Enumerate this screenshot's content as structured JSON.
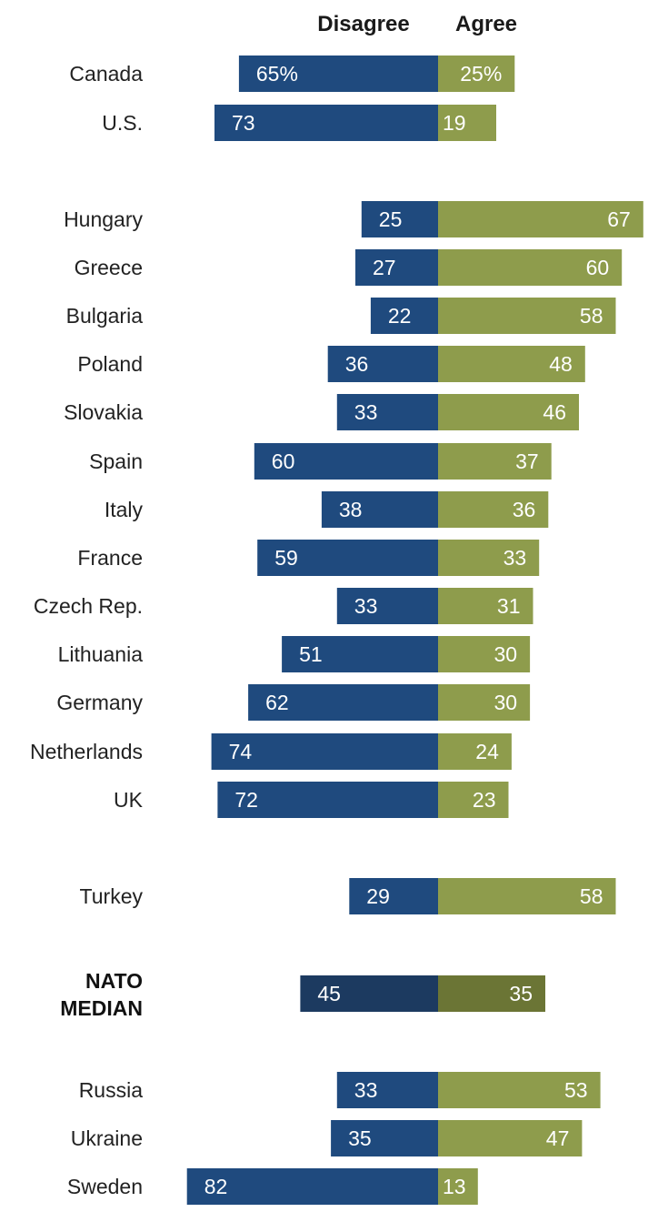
{
  "chart_data": {
    "type": "bar",
    "orientation": "horizontal-diverging",
    "headers": {
      "disagree": "Disagree",
      "agree": "Agree"
    },
    "series": [
      {
        "name": "Disagree",
        "color": "#1f4a7e",
        "emphasis_color": "#1c3a60"
      },
      {
        "name": "Agree",
        "color": "#8e9c4c",
        "emphasis_color": "#6b7535"
      }
    ],
    "rows": [
      {
        "label": "Canada",
        "disagree": 65,
        "agree": 25,
        "disagree_text": "65%",
        "agree_text": "25%"
      },
      {
        "label": "U.S.",
        "disagree": 73,
        "agree": 19,
        "disagree_text": "73",
        "agree_text": "19"
      },
      {
        "label": "Hungary",
        "disagree": 25,
        "agree": 67,
        "disagree_text": "25",
        "agree_text": "67"
      },
      {
        "label": "Greece",
        "disagree": 27,
        "agree": 60,
        "disagree_text": "27",
        "agree_text": "60"
      },
      {
        "label": "Bulgaria",
        "disagree": 22,
        "agree": 58,
        "disagree_text": "22",
        "agree_text": "58"
      },
      {
        "label": "Poland",
        "disagree": 36,
        "agree": 48,
        "disagree_text": "36",
        "agree_text": "48"
      },
      {
        "label": "Slovakia",
        "disagree": 33,
        "agree": 46,
        "disagree_text": "33",
        "agree_text": "46"
      },
      {
        "label": "Spain",
        "disagree": 60,
        "agree": 37,
        "disagree_text": "60",
        "agree_text": "37"
      },
      {
        "label": "Italy",
        "disagree": 38,
        "agree": 36,
        "disagree_text": "38",
        "agree_text": "36"
      },
      {
        "label": "France",
        "disagree": 59,
        "agree": 33,
        "disagree_text": "59",
        "agree_text": "33"
      },
      {
        "label": "Czech Rep.",
        "disagree": 33,
        "agree": 31,
        "disagree_text": "33",
        "agree_text": "31"
      },
      {
        "label": "Lithuania",
        "disagree": 51,
        "agree": 30,
        "disagree_text": "51",
        "agree_text": "30"
      },
      {
        "label": "Germany",
        "disagree": 62,
        "agree": 30,
        "disagree_text": "62",
        "agree_text": "30"
      },
      {
        "label": "Netherlands",
        "disagree": 74,
        "agree": 24,
        "disagree_text": "74",
        "agree_text": "24"
      },
      {
        "label": "UK",
        "disagree": 72,
        "agree": 23,
        "disagree_text": "72",
        "agree_text": "23"
      },
      {
        "label": "Turkey",
        "disagree": 29,
        "agree": 58,
        "disagree_text": "29",
        "agree_text": "58"
      },
      {
        "label": "NATO MEDIAN",
        "label_lines": [
          "NATO",
          "MEDIAN"
        ],
        "emphasis": true,
        "disagree": 45,
        "agree": 35,
        "disagree_text": "45",
        "agree_text": "35"
      },
      {
        "label": "Russia",
        "disagree": 33,
        "agree": 53,
        "disagree_text": "33",
        "agree_text": "53"
      },
      {
        "label": "Ukraine",
        "disagree": 35,
        "agree": 47,
        "disagree_text": "35",
        "agree_text": "47"
      },
      {
        "label": "Sweden",
        "disagree": 82,
        "agree": 13,
        "disagree_text": "82",
        "agree_text": "13"
      }
    ]
  }
}
